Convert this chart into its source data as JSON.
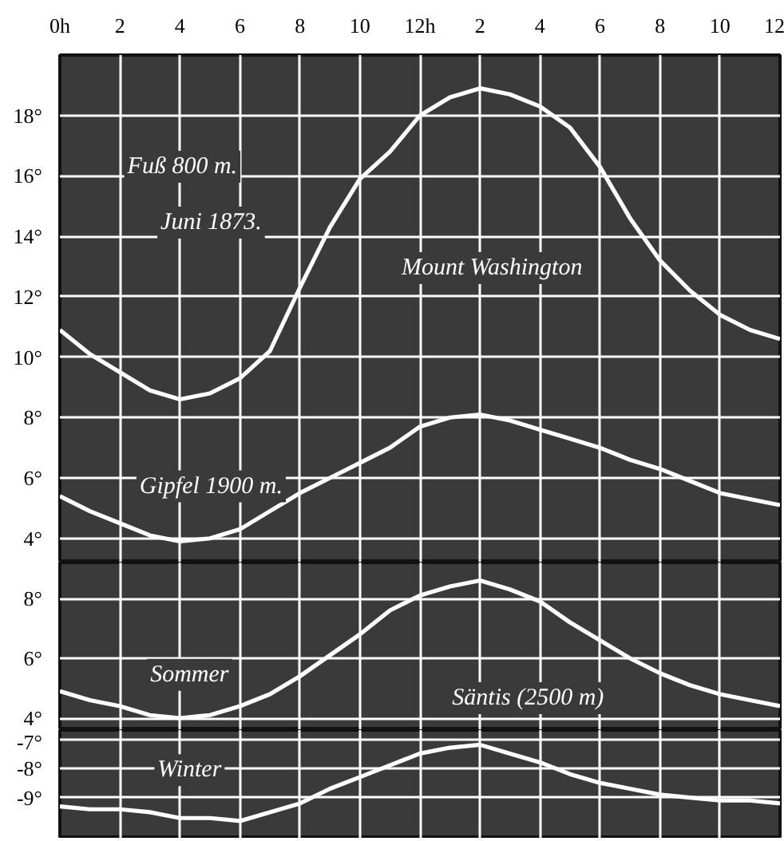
{
  "chart_data": [
    {
      "type": "line",
      "categories": [
        "0h",
        null,
        "2",
        null,
        "4",
        null,
        "6",
        null,
        "8",
        null,
        "10",
        null,
        "12h",
        null,
        "2",
        null,
        "4",
        null,
        "6",
        null,
        "8",
        null,
        "10",
        null,
        "12"
      ],
      "ylim": [
        3.2,
        20
      ],
      "yticks": [
        {
          "value": 4,
          "label": "4°"
        },
        {
          "value": 6,
          "label": "6°"
        },
        {
          "value": 8,
          "label": "8°"
        },
        {
          "value": 10,
          "label": "10°"
        },
        {
          "value": 12,
          "label": "12°"
        },
        {
          "value": 14,
          "label": "14°"
        },
        {
          "value": 16,
          "label": "16°"
        },
        {
          "value": 18,
          "label": "18°"
        }
      ],
      "grid": true,
      "series": [
        {
          "color": "#ffffff",
          "values": [
            10.9,
            10.1,
            9.5,
            8.9,
            8.6,
            8.8,
            9.3,
            10.2,
            12.3,
            14.3,
            15.9,
            16.8,
            18.0,
            18.6,
            18.9,
            18.7,
            18.3,
            17.6,
            16.3,
            14.6,
            13.2,
            12.2,
            11.4,
            10.9,
            10.6
          ]
        },
        {
          "name": "Gipfel 1900 m.",
          "color": "#ffffff",
          "values": [
            5.4,
            4.9,
            4.5,
            4.1,
            3.9,
            4.0,
            4.3,
            4.9,
            5.5,
            6.0,
            6.5,
            7.0,
            7.7,
            8.0,
            8.1,
            7.9,
            7.6,
            7.3,
            7.0,
            6.6,
            6.3,
            5.9,
            5.5,
            5.3,
            5.1
          ]
        }
      ],
      "annotations": [
        "Fuß 800 m.",
        "Juni 1873.",
        "Mount Washington"
      ]
    },
    {
      "type": "line",
      "categories": [
        null,
        null,
        null,
        null,
        null,
        null,
        null,
        null,
        null,
        null,
        null,
        null,
        null,
        null,
        null,
        null,
        null,
        null,
        null,
        null,
        null,
        null,
        null,
        null,
        null
      ],
      "ylim": [
        3.6,
        9.2
      ],
      "yticks": [
        {
          "value": 4,
          "label": "4°"
        },
        {
          "value": 6,
          "label": "6°"
        },
        {
          "value": 8,
          "label": "8°"
        }
      ],
      "grid": true,
      "tick_labels": "y",
      "series": [
        {
          "name": "Sommer",
          "color": "#ffffff",
          "values": [
            4.9,
            4.6,
            4.4,
            4.1,
            4.0,
            4.1,
            4.4,
            4.8,
            5.4,
            6.1,
            6.8,
            7.6,
            8.1,
            8.4,
            8.6,
            8.3,
            7.9,
            7.2,
            6.6,
            6.0,
            5.5,
            5.1,
            4.8,
            4.6,
            4.4
          ]
        }
      ],
      "annotations": [
        "Säntis (2500 m)"
      ]
    },
    {
      "type": "line",
      "categories": [
        null,
        null,
        null,
        null,
        null,
        null,
        null,
        null,
        null,
        null,
        null,
        null,
        null,
        null,
        null,
        null,
        null,
        null,
        null,
        null,
        null,
        null,
        null,
        null,
        null
      ],
      "ylim": [
        -10.4,
        -6.7
      ],
      "yticks": [
        {
          "value": -7,
          "label": "-7°"
        },
        {
          "value": -8,
          "label": "-8°"
        },
        {
          "value": -9,
          "label": "-9°"
        }
      ],
      "grid": true,
      "tick_labels": "y",
      "series": [
        {
          "name": "Winter",
          "color": "#ffffff",
          "values": [
            -9.3,
            -9.4,
            -9.4,
            -9.5,
            -9.7,
            -9.7,
            -9.8,
            -9.5,
            -9.2,
            -8.7,
            -8.3,
            -7.9,
            -7.5,
            -7.3,
            -7.2,
            -7.5,
            -7.8,
            -8.2,
            -8.5,
            -8.7,
            -8.9,
            -9.0,
            -9.1,
            -9.1,
            -9.2
          ]
        }
      ]
    }
  ]
}
